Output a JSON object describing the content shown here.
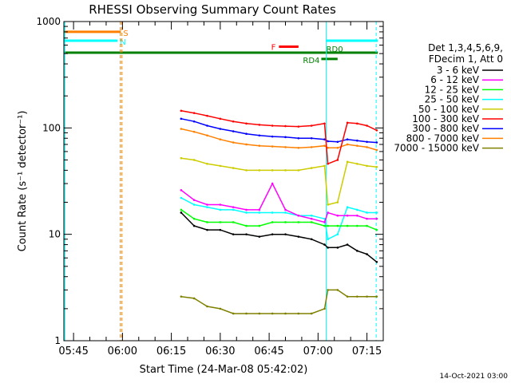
{
  "chart_data": {
    "type": "line",
    "title": "RHESSI Observing Summary Count Rates",
    "xlabel": "Start Time (24-Mar-08 05:42:02)",
    "ylabel": "Count Rate (s⁻¹ detector⁻¹)",
    "x_unit": "time (HH:MM UT)",
    "xlim": [
      "05:42:02",
      "07:20:00"
    ],
    "ylim": [
      1,
      1000
    ],
    "yscale": "log",
    "x_ticks": [
      "05:45",
      "06:00",
      "06:15",
      "06:30",
      "06:45",
      "07:00",
      "07:15"
    ],
    "y_ticks": [
      1,
      10,
      100,
      1000
    ],
    "y_tick_labels": [
      "1",
      "10",
      "100",
      "1000"
    ],
    "legend_header": [
      "Det 1,3,4,5,6,9,",
      "FDecim 1, Att 0"
    ],
    "legend_position": "right",
    "timestamp": "14-Oct-2021 03:00",
    "flags": [
      {
        "label": "S",
        "color": "#ff8000",
        "y": 800,
        "segments": [
          [
            "05:42:02",
            "05:59:30"
          ]
        ]
      },
      {
        "label": "N",
        "color": "#00ffff",
        "y": 660,
        "segments": [
          [
            "05:42:02",
            "05:58:30"
          ],
          [
            "07:02:30",
            "07:18:20"
          ]
        ]
      },
      {
        "label": "",
        "color": "#008000",
        "y": 510,
        "segments": [
          [
            "05:42:02",
            "07:18:20"
          ]
        ]
      },
      {
        "label": "F",
        "color": "#ff0000",
        "y": 580,
        "segments": [
          [
            "06:48:00",
            "06:54:00"
          ]
        ]
      },
      {
        "label": "RD0",
        "color": "#008000",
        "y": 510,
        "segments": []
      },
      {
        "label": "RD4",
        "color": "#008000",
        "y": 445,
        "segments": [
          [
            "07:01:00",
            "07:06:00"
          ]
        ]
      }
    ],
    "vlines": [
      {
        "time": "05:42:20",
        "color": "#00ffff",
        "dash": false
      },
      {
        "time": "05:59:20",
        "color": "#ff8000",
        "dash": true
      },
      {
        "time": "05:59:50",
        "color": "#ff8000",
        "dash": true
      },
      {
        "time": "07:02:30",
        "color": "#00ffff",
        "dash": false
      },
      {
        "time": "07:17:50",
        "color": "#00ffff",
        "dash": true
      }
    ],
    "x": [
      "06:18",
      "06:22",
      "06:26",
      "06:30",
      "06:34",
      "06:38",
      "06:42",
      "06:46",
      "06:50",
      "06:54",
      "06:58",
      "07:02",
      "07:03",
      "07:06",
      "07:09",
      "07:12",
      "07:15",
      "07:18"
    ],
    "series": [
      {
        "name": "3 - 6 keV",
        "color": "#000000",
        "values": [
          16,
          12,
          11,
          11,
          10,
          10,
          9.5,
          10,
          10,
          9.5,
          9,
          8,
          7.5,
          7.5,
          8,
          7,
          6.5,
          5.5
        ]
      },
      {
        "name": "6 - 12 keV",
        "color": "#ff00ff",
        "values": [
          26,
          21,
          19,
          19,
          18,
          17,
          17,
          30,
          17,
          15,
          14,
          13,
          16,
          15,
          15,
          15,
          14,
          14
        ]
      },
      {
        "name": "12 - 25 keV",
        "color": "#00ff00",
        "values": [
          17,
          14,
          13,
          13,
          13,
          12,
          12,
          13,
          13,
          13,
          13,
          12,
          12,
          12,
          12,
          12,
          12,
          11
        ]
      },
      {
        "name": "25 - 50 keV",
        "color": "#00ffff",
        "values": [
          22,
          19,
          18,
          17,
          17,
          16,
          16,
          16,
          16,
          15,
          15,
          14,
          9,
          10,
          18,
          17,
          16,
          16
        ]
      },
      {
        "name": "50 - 100 keV",
        "color": "#cccc00",
        "values": [
          52,
          50,
          46,
          44,
          42,
          40,
          40,
          40,
          40,
          40,
          42,
          44,
          19,
          20,
          48,
          46,
          44,
          43
        ]
      },
      {
        "name": "100 - 300 keV",
        "color": "#ff0000",
        "values": [
          145,
          138,
          130,
          122,
          115,
          110,
          107,
          105,
          104,
          103,
          105,
          110,
          46,
          50,
          112,
          110,
          105,
          95
        ]
      },
      {
        "name": "300 - 800 keV",
        "color": "#0000ff",
        "values": [
          122,
          115,
          105,
          98,
          93,
          88,
          85,
          83,
          82,
          80,
          80,
          78,
          75,
          74,
          78,
          76,
          74,
          73
        ]
      },
      {
        "name": "800 - 7000 keV",
        "color": "#ff8000",
        "values": [
          98,
          92,
          85,
          78,
          73,
          70,
          68,
          67,
          66,
          65,
          66,
          68,
          65,
          65,
          70,
          68,
          66,
          62
        ]
      },
      {
        "name": "7000 - 15000 keV",
        "color": "#808000",
        "values": [
          2.6,
          2.5,
          2.1,
          2.0,
          1.8,
          1.8,
          1.8,
          1.8,
          1.8,
          1.8,
          1.8,
          2.0,
          3.0,
          3.0,
          2.6,
          2.6,
          2.6,
          2.6
        ]
      }
    ]
  }
}
